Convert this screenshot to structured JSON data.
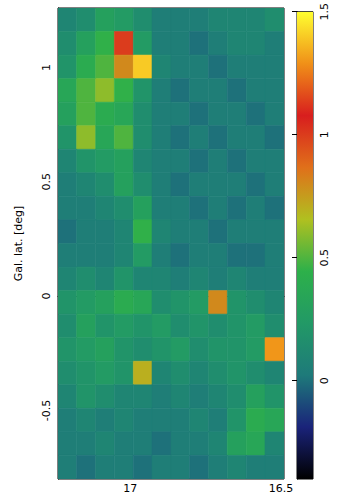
{
  "chart_data": {
    "type": "heatmap",
    "ylabel": "Gal. lat. [deg]",
    "xlim": [
      17.24,
      16.49
    ],
    "xticks": [
      17,
      16.5
    ],
    "ylim": [
      -0.8,
      1.26
    ],
    "yticks": [
      -0.5,
      0,
      0.5,
      1
    ],
    "grid": false,
    "lon_edges": [
      17.24,
      17.178,
      17.115,
      17.053,
      16.99,
      16.928,
      16.865,
      16.803,
      16.74,
      16.678,
      16.615,
      16.553,
      16.49
    ],
    "lat_edges": [
      1.26,
      1.157,
      1.054,
      0.951,
      0.848,
      0.745,
      0.642,
      0.539,
      0.436,
      0.333,
      0.23,
      0.127,
      0.024,
      -0.079,
      -0.182,
      -0.285,
      -0.388,
      -0.491,
      -0.594,
      -0.697,
      -0.8
    ],
    "cells": [
      [
        0.1,
        0.15,
        0.3,
        0.25,
        0.15,
        0.05,
        0.05,
        0.05,
        0.1,
        0.1,
        0.1,
        0.15
      ],
      [
        0.15,
        0.3,
        0.45,
        1.0,
        0.25,
        0.05,
        0.05,
        0.0,
        0.05,
        0.1,
        0.1,
        0.05
      ],
      [
        0.2,
        0.4,
        0.5,
        0.8,
        1.4,
        0.1,
        0.05,
        0.05,
        0.0,
        0.05,
        0.05,
        0.05
      ],
      [
        0.35,
        0.5,
        0.6,
        0.45,
        0.2,
        0.05,
        0.0,
        0.05,
        0.05,
        0.0,
        0.05,
        0.05
      ],
      [
        0.3,
        0.5,
        0.4,
        0.35,
        0.15,
        0.05,
        0.05,
        0.0,
        0.05,
        0.05,
        0.0,
        0.05
      ],
      [
        0.2,
        0.6,
        0.35,
        0.5,
        0.15,
        0.05,
        0.0,
        0.05,
        0.0,
        0.05,
        0.05,
        0.0
      ],
      [
        0.1,
        0.2,
        0.25,
        0.3,
        0.1,
        0.05,
        0.05,
        0.0,
        0.05,
        0.0,
        0.05,
        0.05
      ],
      [
        0.05,
        0.1,
        0.15,
        0.3,
        0.15,
        0.05,
        0.0,
        0.05,
        0.05,
        0.05,
        0.0,
        0.05
      ],
      [
        0.05,
        0.05,
        0.1,
        0.15,
        0.3,
        0.05,
        0.05,
        0.0,
        0.05,
        0.0,
        0.05,
        0.0
      ],
      [
        0.0,
        0.05,
        0.05,
        0.1,
        0.45,
        0.1,
        0.05,
        0.05,
        0.0,
        0.05,
        0.05,
        0.05
      ],
      [
        0.05,
        0.05,
        0.05,
        0.1,
        0.25,
        0.05,
        0.0,
        0.05,
        0.05,
        0.0,
        0.0,
        0.05
      ],
      [
        0.1,
        0.15,
        0.1,
        0.2,
        0.1,
        0.1,
        0.05,
        0.1,
        0.05,
        0.1,
        0.05,
        0.05
      ],
      [
        0.2,
        0.25,
        0.3,
        0.4,
        0.35,
        0.15,
        0.2,
        0.25,
        0.8,
        0.2,
        0.15,
        0.1
      ],
      [
        0.15,
        0.3,
        0.2,
        0.25,
        0.2,
        0.25,
        0.15,
        0.2,
        0.15,
        0.2,
        0.25,
        0.15
      ],
      [
        0.2,
        0.25,
        0.3,
        0.2,
        0.15,
        0.2,
        0.25,
        0.15,
        0.2,
        0.2,
        0.25,
        1.3
      ],
      [
        0.15,
        0.2,
        0.25,
        0.2,
        0.7,
        0.1,
        0.15,
        0.1,
        0.15,
        0.2,
        0.15,
        0.1
      ],
      [
        0.1,
        0.2,
        0.15,
        0.1,
        0.1,
        0.05,
        0.1,
        0.05,
        0.1,
        0.15,
        0.3,
        0.2
      ],
      [
        0.05,
        0.1,
        0.05,
        0.1,
        0.05,
        0.05,
        0.05,
        0.1,
        0.05,
        0.2,
        0.4,
        0.35
      ],
      [
        0.05,
        0.05,
        0.1,
        0.05,
        0.05,
        0.0,
        0.05,
        0.05,
        0.1,
        0.3,
        0.35,
        0.1
      ],
      [
        0.05,
        0.0,
        0.05,
        0.05,
        0.0,
        0.05,
        0.05,
        0.0,
        0.05,
        0.1,
        0.05,
        0.05
      ]
    ],
    "colorbar": {
      "range": [
        -0.4,
        1.5
      ],
      "ticks": [
        0,
        0.5,
        1,
        1.5
      ]
    }
  }
}
